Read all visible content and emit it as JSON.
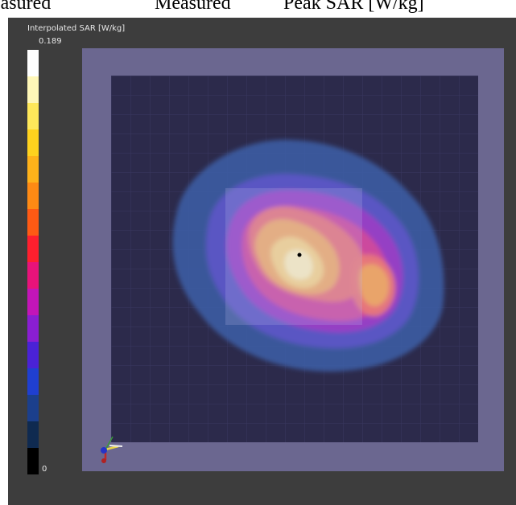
{
  "header": {
    "col1": "easured",
    "col2": "Measured",
    "col3": "Peak  SAR  [W/kg]"
  },
  "legend": {
    "title": "Interpolated SAR [W/kg]",
    "max_label": "0.189",
    "min_label": "0",
    "colors": [
      "#ffffff",
      "#fff7b8",
      "#ffe85a",
      "#ffd21e",
      "#ffb21a",
      "#ff8a14",
      "#ff5a14",
      "#ff1f2e",
      "#e8137a",
      "#c315b8",
      "#8a1ed2",
      "#4a22d6",
      "#1f3fd0",
      "#1b3f8c",
      "#0f2a50",
      "#000000"
    ]
  },
  "map": {
    "background_plate": "#6f6a8e",
    "area_fill": "#2c2a4a",
    "grid_color": "#3d3a5e",
    "marker_color": "#000000"
  }
}
